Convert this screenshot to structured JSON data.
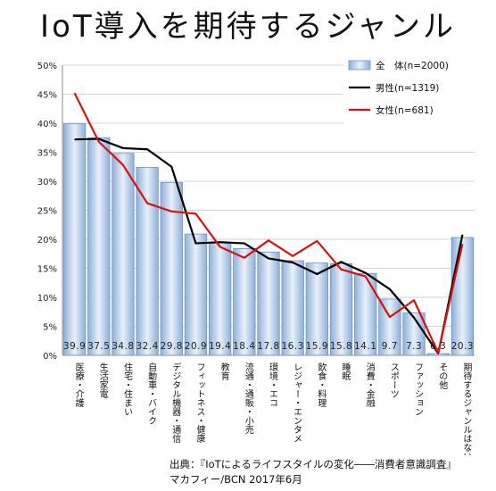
{
  "title": "IoT導入を期待するジャンル",
  "source": {
    "line1": "出典：『IoTによるライフスタイルの変化――消費者意識調査』",
    "line2": "マカフィー/BCN 2017年6月"
  },
  "chart_data": {
    "type": "bar",
    "categories": [
      "医療・介護",
      "生活家電",
      "住宅・住まい",
      "自動車・バイク",
      "デジタル機器・通信",
      "フィットネス・健康",
      "教育",
      "流通・通販・小売",
      "環境・エコ",
      "レジャー・エンタメ",
      "飲食・料理",
      "睡眠",
      "消費・金融",
      "スポーツ",
      "ファッション",
      "その他",
      "期待するジャンルはない"
    ],
    "series": [
      {
        "name": "全　体(n=2000)",
        "type": "bar",
        "color": "#b8cde8",
        "values": [
          39.9,
          37.5,
          34.8,
          32.4,
          29.8,
          20.9,
          19.4,
          18.4,
          17.8,
          16.3,
          15.9,
          15.8,
          14.1,
          9.7,
          7.3,
          0.3,
          20.3
        ],
        "labels": [
          "39.9",
          "37.5",
          "34.8",
          "32.4",
          "29.8",
          "20.9",
          "19.4",
          "18.4",
          "17.8",
          "16.3",
          "15.9",
          "15.8",
          "14.1",
          "9.7",
          "7.3",
          "0.3",
          "20.3"
        ]
      },
      {
        "name": "男性(n=1319)",
        "type": "line",
        "color": "#000000",
        "values": [
          37.2,
          37.3,
          35.7,
          35.5,
          32.5,
          19.3,
          19.5,
          19.3,
          16.7,
          16.0,
          14.0,
          16.1,
          14.2,
          11.4,
          6.5,
          0.3,
          20.8
        ]
      },
      {
        "name": "女性(n=681)",
        "type": "line",
        "color": "#d81010",
        "values": [
          45.2,
          36.8,
          32.8,
          26.2,
          24.8,
          24.4,
          18.7,
          16.8,
          19.8,
          17.1,
          19.7,
          14.8,
          13.6,
          6.6,
          9.5,
          0.4,
          19.2
        ]
      }
    ],
    "ylim": [
      0,
      50
    ],
    "yticks": [
      "0%",
      "5%",
      "10%",
      "15%",
      "20%",
      "25%",
      "30%",
      "35%",
      "40%",
      "45%",
      "50%"
    ],
    "grid": true,
    "legend": "top-right"
  }
}
